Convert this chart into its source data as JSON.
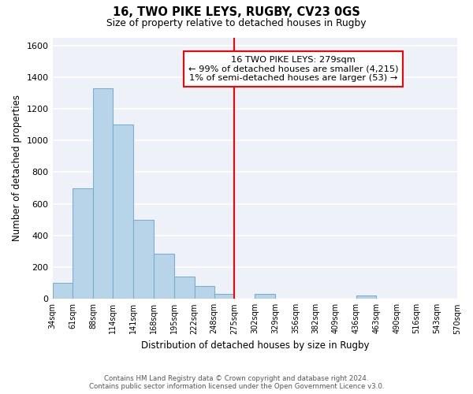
{
  "title": "16, TWO PIKE LEYS, RUGBY, CV23 0GS",
  "subtitle": "Size of property relative to detached houses in Rugby",
  "xlabel": "Distribution of detached houses by size in Rugby",
  "ylabel": "Number of detached properties",
  "bar_color": "#b8d4e8",
  "bar_edge_color": "#7aafd4",
  "bg_color": "#eef2f8",
  "grid_color": "white",
  "bin_edges": [
    34,
    61,
    88,
    114,
    141,
    168,
    195,
    222,
    248,
    275,
    302,
    329,
    356,
    382,
    409,
    436,
    463,
    490,
    516,
    543,
    570
  ],
  "bar_heights": [
    100,
    700,
    1330,
    1100,
    500,
    285,
    140,
    80,
    30,
    0,
    30,
    0,
    0,
    0,
    0,
    20,
    0,
    0,
    0,
    0
  ],
  "vline_x": 275,
  "vline_color": "red",
  "annotation_title": "16 TWO PIKE LEYS: 279sqm",
  "annotation_line1": "← 99% of detached houses are smaller (4,215)",
  "annotation_line2": "1% of semi-detached houses are larger (53) →",
  "footnote1": "Contains HM Land Registry data © Crown copyright and database right 2024.",
  "footnote2": "Contains public sector information licensed under the Open Government Licence v3.0.",
  "tick_labels": [
    "34sqm",
    "61sqm",
    "88sqm",
    "114sqm",
    "141sqm",
    "168sqm",
    "195sqm",
    "222sqm",
    "248sqm",
    "275sqm",
    "302sqm",
    "329sqm",
    "356sqm",
    "382sqm",
    "409sqm",
    "436sqm",
    "463sqm",
    "490sqm",
    "516sqm",
    "543sqm",
    "570sqm"
  ],
  "ylim": [
    0,
    1650
  ],
  "yticks": [
    0,
    200,
    400,
    600,
    800,
    1000,
    1200,
    1400,
    1600
  ]
}
